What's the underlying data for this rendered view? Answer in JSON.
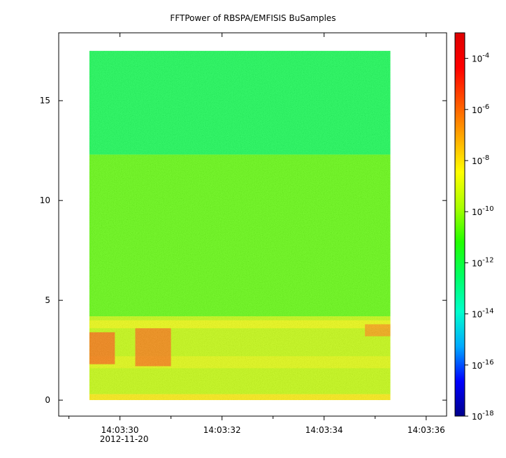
{
  "chart_data": {
    "type": "heatmap",
    "title": "FFTPower of RBSPA/EMFISIS  BuSamples",
    "xlabel": "",
    "ylabel": "",
    "x": {
      "range": [
        "14:03:28.8",
        "14:03:36.4"
      ],
      "data_range": [
        "14:03:29.4",
        "14:03:35.3"
      ],
      "major_ticks": [
        {
          "t": "14:03:30",
          "label": "14:03:30",
          "sublabel": "2012-11-20"
        },
        {
          "t": "14:03:32",
          "label": "14:03:32"
        },
        {
          "t": "14:03:34",
          "label": "14:03:34"
        },
        {
          "t": "14:03:36",
          "label": "14:03:36"
        }
      ],
      "minor_ticks": [
        "14:03:29",
        "14:03:31",
        "14:03:33",
        "14:03:35"
      ]
    },
    "y": {
      "range": [
        -0.8,
        18.4
      ],
      "data_range": [
        0,
        17.5
      ],
      "ticks": [
        0,
        5,
        10,
        15
      ]
    },
    "colorbar": {
      "scale": "log",
      "range": [
        1e-18,
        0.001
      ],
      "colormap": [
        "#00008b",
        "#0000ff",
        "#00aaff",
        "#00ffcc",
        "#00ff66",
        "#22ff00",
        "#aaff00",
        "#ffff00",
        "#ffaa00",
        "#ff5500",
        "#ff0000",
        "#dd0000"
      ],
      "ticks": [
        {
          "value": 1e-18,
          "base": "10",
          "exp": "-18"
        },
        {
          "value": 1e-16,
          "base": "10",
          "exp": "-16"
        },
        {
          "value": 1e-14,
          "base": "10",
          "exp": "-14"
        },
        {
          "value": 1e-12,
          "base": "10",
          "exp": "-12"
        },
        {
          "value": 1e-10,
          "base": "10",
          "exp": "-10"
        },
        {
          "value": 1e-08,
          "base": "10",
          "exp": "-8"
        },
        {
          "value": 1e-06,
          "base": "10",
          "exp": "-6"
        },
        {
          "value": 0.0001,
          "base": "10",
          "exp": "-4"
        }
      ]
    },
    "spectrogram": {
      "background_log_power": [
        {
          "y_from": 12.3,
          "y_to": 17.5,
          "log10": -12.2
        },
        {
          "y_from": 4.2,
          "y_to": 12.3,
          "log10": -10.6
        },
        {
          "y_from": 0.3,
          "y_to": 4.2,
          "log10": -9.4
        },
        {
          "y_from": 0.0,
          "y_to": 0.3,
          "log10": -8.2
        }
      ],
      "features": [
        {
          "name": "band near 4",
          "t_from": "14:03:29.4",
          "t_to": "14:03:35.3",
          "y_from": 3.6,
          "y_to": 4.0,
          "log10": -8.6
        },
        {
          "name": "band near 2",
          "t_from": "14:03:29.4",
          "t_to": "14:03:35.3",
          "y_from": 1.6,
          "y_to": 2.2,
          "log10": -8.8
        },
        {
          "name": "burst 1",
          "t_from": "14:03:29.4",
          "t_to": "14:03:29.9",
          "y_from": 1.8,
          "y_to": 3.4,
          "log10": -6.0
        },
        {
          "name": "burst 2",
          "t_from": "14:03:30.3",
          "t_to": "14:03:31.0",
          "y_from": 1.7,
          "y_to": 3.6,
          "log10": -6.2
        },
        {
          "name": "burst 3",
          "t_from": "14:03:34.8",
          "t_to": "14:03:35.3",
          "y_from": 3.2,
          "y_to": 3.8,
          "log10": -6.8
        }
      ]
    }
  }
}
